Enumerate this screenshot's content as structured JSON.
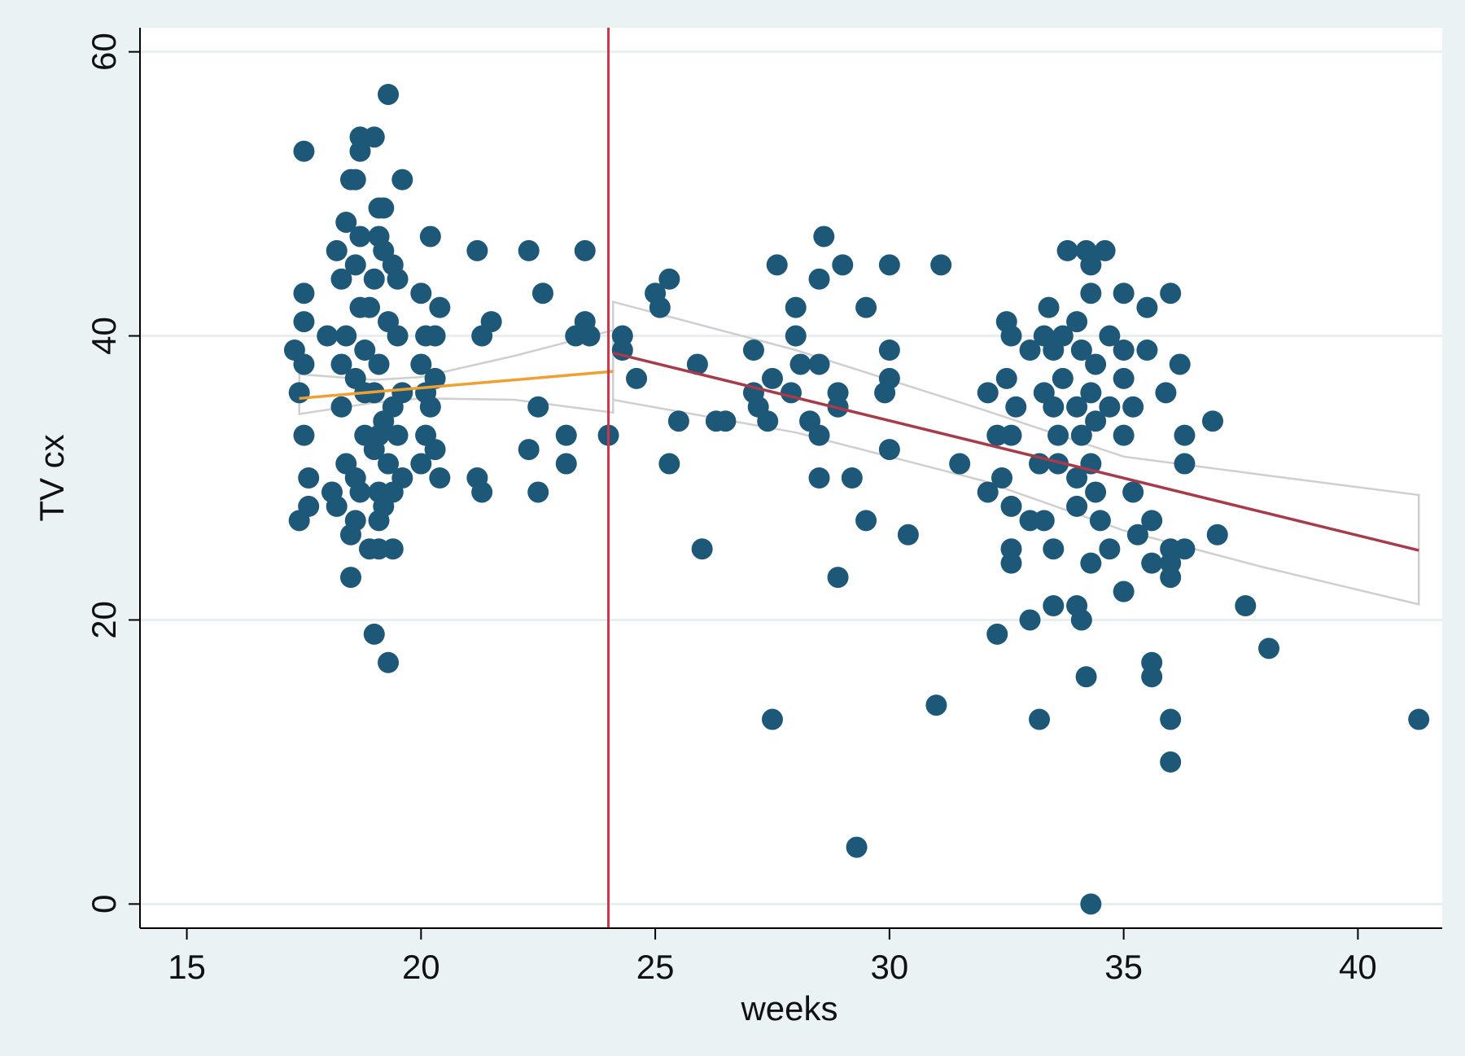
{
  "chart_data": {
    "type": "scatter",
    "title": "",
    "xlabel": "weeks",
    "ylabel": "TV cx",
    "xlim": [
      14,
      41.8
    ],
    "ylim": [
      -1.7,
      61.7
    ],
    "xticks": [
      15,
      20,
      25,
      30,
      35,
      40
    ],
    "yticks": [
      0,
      20,
      40,
      60
    ],
    "grid": true,
    "legend": "none",
    "colors": {
      "background": "#eaf2f3",
      "plot_area": "#ffffff",
      "gridline": "#e7eff0",
      "axis": "#000000",
      "points": "#1e5878",
      "fit_before": "#f0a030",
      "fit_after": "#a83a4a",
      "cutoff_line": "#d2334a",
      "confidence_band": "#cfcfcf"
    },
    "cutoff_x": 24,
    "fit_lines": [
      {
        "x": [
          17.4,
          24.1
        ],
        "y": [
          35.6,
          37.5
        ]
      },
      {
        "x": [
          24.1,
          41.3
        ],
        "y": [
          38.8,
          24.9
        ]
      }
    ],
    "confidence_bands": [
      {
        "upper": [
          [
            17.4,
            37.3
          ],
          [
            19,
            36.9
          ],
          [
            20,
            37.1
          ],
          [
            22,
            38.6
          ],
          [
            24.1,
            40.4
          ]
        ],
        "lower": [
          [
            17.4,
            34.5
          ],
          [
            19,
            35.3
          ],
          [
            20,
            35.6
          ],
          [
            22,
            35.5
          ],
          [
            24.1,
            34.6
          ]
        ]
      },
      {
        "upper": [
          [
            24.1,
            42.4
          ],
          [
            28,
            39
          ],
          [
            32,
            34.8
          ],
          [
            35,
            31.5
          ],
          [
            38,
            30.2
          ],
          [
            41.3,
            28.8
          ]
        ],
        "lower": [
          [
            24.1,
            35.5
          ],
          [
            28,
            33.2
          ],
          [
            32,
            29.8
          ],
          [
            35,
            26.3
          ],
          [
            38,
            23.7
          ],
          [
            41.3,
            21.1
          ]
        ]
      }
    ],
    "points": [
      [
        17.3,
        39
      ],
      [
        17.4,
        36
      ],
      [
        17.5,
        38
      ],
      [
        17.5,
        43
      ],
      [
        17.5,
        41
      ],
      [
        17.5,
        33
      ],
      [
        17.6,
        30
      ],
      [
        17.6,
        28
      ],
      [
        17.4,
        27
      ],
      [
        17.5,
        53
      ],
      [
        18,
        40
      ],
      [
        18.1,
        29
      ],
      [
        18.2,
        28
      ],
      [
        18.3,
        44
      ],
      [
        18.2,
        46
      ],
      [
        18.4,
        48
      ],
      [
        18.3,
        38
      ],
      [
        18.3,
        35
      ],
      [
        18.4,
        31
      ],
      [
        18.5,
        26
      ],
      [
        18.5,
        23
      ],
      [
        18.6,
        27
      ],
      [
        18.5,
        51
      ],
      [
        18.6,
        51
      ],
      [
        18.7,
        53
      ],
      [
        18.7,
        54
      ],
      [
        18.7,
        47
      ],
      [
        18.6,
        45
      ],
      [
        18.7,
        42
      ],
      [
        18.8,
        39
      ],
      [
        18.6,
        37
      ],
      [
        18.8,
        33
      ],
      [
        18.6,
        30
      ],
      [
        18.7,
        29
      ],
      [
        19,
        54
      ],
      [
        19.1,
        49
      ],
      [
        19.2,
        49
      ],
      [
        19.3,
        57
      ],
      [
        19.1,
        47
      ],
      [
        19.2,
        46
      ],
      [
        19.4,
        45
      ],
      [
        19,
        44
      ],
      [
        19.3,
        41
      ],
      [
        19.1,
        38
      ],
      [
        19,
        36
      ],
      [
        19.2,
        34
      ],
      [
        19,
        32
      ],
      [
        19.3,
        31
      ],
      [
        19.1,
        29
      ],
      [
        19.2,
        28
      ],
      [
        19.1,
        27
      ],
      [
        18.9,
        25
      ],
      [
        19.1,
        25
      ],
      [
        19.4,
        25
      ],
      [
        19,
        19
      ],
      [
        19.3,
        17
      ],
      [
        19.6,
        51
      ],
      [
        19.5,
        44
      ],
      [
        19.5,
        40
      ],
      [
        19.6,
        36
      ],
      [
        19.5,
        33
      ],
      [
        19.6,
        30
      ],
      [
        19.4,
        29
      ],
      [
        19.4,
        35
      ],
      [
        18.9,
        42
      ],
      [
        18.4,
        40
      ],
      [
        18.8,
        36
      ],
      [
        19.1,
        33
      ],
      [
        20,
        43
      ],
      [
        20.1,
        40
      ],
      [
        20,
        38
      ],
      [
        20.1,
        36
      ],
      [
        20.1,
        33
      ],
      [
        20,
        31
      ],
      [
        20.2,
        47
      ],
      [
        20.4,
        42
      ],
      [
        20.3,
        40
      ],
      [
        20.3,
        37
      ],
      [
        20.2,
        35
      ],
      [
        20.3,
        32
      ],
      [
        20.4,
        30
      ],
      [
        21.2,
        46
      ],
      [
        21.3,
        40
      ],
      [
        21.5,
        41
      ],
      [
        21.2,
        30
      ],
      [
        21.3,
        29
      ],
      [
        22.3,
        46
      ],
      [
        22.6,
        43
      ],
      [
        22.5,
        35
      ],
      [
        22.3,
        32
      ],
      [
        22.5,
        29
      ],
      [
        23.1,
        33
      ],
      [
        23.1,
        31
      ],
      [
        23.3,
        40
      ],
      [
        23.5,
        41
      ],
      [
        23.5,
        46
      ],
      [
        23.6,
        40
      ],
      [
        24,
        33
      ],
      [
        24.3,
        40
      ],
      [
        24.3,
        39
      ],
      [
        24.6,
        37
      ],
      [
        25,
        43
      ],
      [
        25.1,
        42
      ],
      [
        25.3,
        44
      ],
      [
        25.3,
        31
      ],
      [
        25.5,
        34
      ],
      [
        25.9,
        38
      ],
      [
        26,
        25
      ],
      [
        26.3,
        34
      ],
      [
        26.5,
        34
      ],
      [
        27.1,
        39
      ],
      [
        27.1,
        36
      ],
      [
        27.2,
        35
      ],
      [
        27.4,
        34
      ],
      [
        27.5,
        37
      ],
      [
        27.6,
        45
      ],
      [
        27.5,
        13
      ],
      [
        28,
        42
      ],
      [
        28,
        40
      ],
      [
        28.1,
        38
      ],
      [
        27.9,
        36
      ],
      [
        28.3,
        34
      ],
      [
        28.5,
        33
      ],
      [
        28.6,
        47
      ],
      [
        28.5,
        44
      ],
      [
        28.5,
        38
      ],
      [
        28.5,
        30
      ],
      [
        29,
        45
      ],
      [
        28.9,
        35
      ],
      [
        28.9,
        36
      ],
      [
        29.2,
        30
      ],
      [
        28.9,
        23
      ],
      [
        29.5,
        42
      ],
      [
        29.5,
        27
      ],
      [
        29.3,
        4
      ],
      [
        30,
        45
      ],
      [
        30,
        39
      ],
      [
        30,
        37
      ],
      [
        29.9,
        36
      ],
      [
        30,
        32
      ],
      [
        30.4,
        26
      ],
      [
        31.1,
        45
      ],
      [
        31,
        14
      ],
      [
        31.5,
        31
      ],
      [
        32.1,
        36
      ],
      [
        32.1,
        29
      ],
      [
        32.3,
        33
      ],
      [
        32.4,
        30
      ],
      [
        32.5,
        37
      ],
      [
        32.5,
        41
      ],
      [
        32.6,
        40
      ],
      [
        32.7,
        35
      ],
      [
        32.6,
        33
      ],
      [
        32.6,
        28
      ],
      [
        32.6,
        25
      ],
      [
        32.6,
        24
      ],
      [
        32.3,
        19
      ],
      [
        33,
        39
      ],
      [
        33,
        27
      ],
      [
        33,
        20
      ],
      [
        33.2,
        31
      ],
      [
        33.2,
        13
      ],
      [
        33.3,
        40
      ],
      [
        33.3,
        36
      ],
      [
        33.4,
        42
      ],
      [
        33.5,
        39
      ],
      [
        33.5,
        35
      ],
      [
        33.6,
        33
      ],
      [
        33.3,
        27
      ],
      [
        33.5,
        25
      ],
      [
        33.5,
        21
      ],
      [
        33.7,
        40
      ],
      [
        33.7,
        37
      ],
      [
        33.8,
        46
      ],
      [
        33.6,
        31
      ],
      [
        34,
        41
      ],
      [
        34.1,
        39
      ],
      [
        34,
        35
      ],
      [
        34.1,
        33
      ],
      [
        34,
        30
      ],
      [
        34,
        28
      ],
      [
        34,
        21
      ],
      [
        34.1,
        20
      ],
      [
        34.2,
        16
      ],
      [
        34.2,
        46
      ],
      [
        34.3,
        45
      ],
      [
        34.3,
        43
      ],
      [
        34.3,
        36
      ],
      [
        34.3,
        31
      ],
      [
        34.3,
        24
      ],
      [
        34.3,
        0
      ],
      [
        34.4,
        38
      ],
      [
        34.4,
        34
      ],
      [
        34.4,
        29
      ],
      [
        34.5,
        27
      ],
      [
        34.6,
        46
      ],
      [
        34.7,
        40
      ],
      [
        34.7,
        35
      ],
      [
        34.7,
        25
      ],
      [
        35,
        43
      ],
      [
        35,
        39
      ],
      [
        35,
        37
      ],
      [
        35,
        33
      ],
      [
        35,
        22
      ],
      [
        35.2,
        35
      ],
      [
        35.2,
        29
      ],
      [
        35.3,
        26
      ],
      [
        35.5,
        42
      ],
      [
        35.5,
        39
      ],
      [
        35.6,
        27
      ],
      [
        35.6,
        24
      ],
      [
        35.6,
        17
      ],
      [
        35.6,
        16
      ],
      [
        36,
        43
      ],
      [
        35.9,
        36
      ],
      [
        36,
        25
      ],
      [
        36,
        24
      ],
      [
        36,
        23
      ],
      [
        36,
        13
      ],
      [
        36,
        10
      ],
      [
        36.2,
        38
      ],
      [
        36.3,
        33
      ],
      [
        36.3,
        31
      ],
      [
        36.3,
        25
      ],
      [
        36.9,
        34
      ],
      [
        37,
        26
      ],
      [
        37.6,
        21
      ],
      [
        38.1,
        18
      ],
      [
        41.3,
        13
      ]
    ]
  }
}
